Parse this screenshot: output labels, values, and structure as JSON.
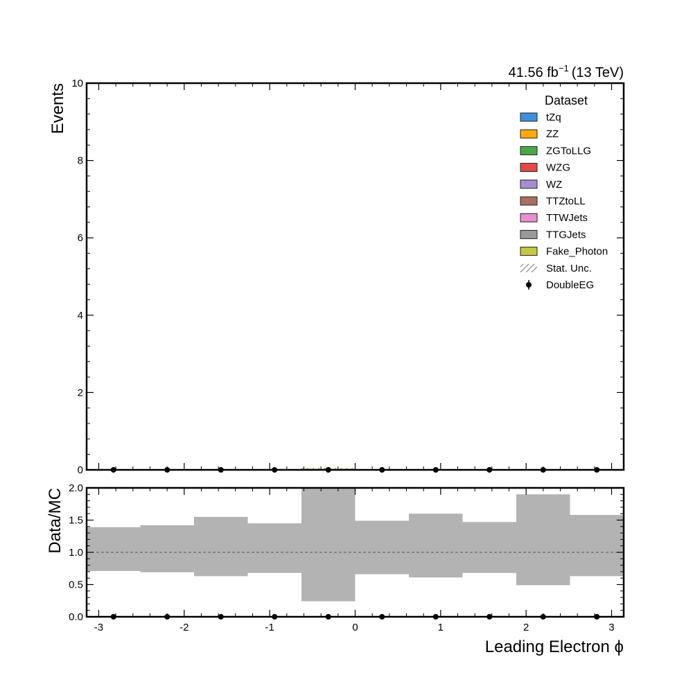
{
  "lumi": {
    "value": "41.56 fb",
    "exponent": "−1",
    "energy": "(13 TeV)"
  },
  "colors": {
    "tZq": "#3f90da",
    "ZZ": "#ffa90e",
    "ZGToLLG": "#4aa64a",
    "WZG": "#e24a4a",
    "WZ": "#a58dd5",
    "TTZtoLL": "#a87060",
    "TTWJets": "#e88fd0",
    "TTGJets": "#999999",
    "Fake_Photon": "#c6c646",
    "band": "#b3b3b3"
  },
  "chart_data": [
    {
      "type": "bar",
      "panel": "main",
      "xlabel": "Leading Electron ϕ",
      "ylabel": "Events",
      "xlim": [
        -3.1416,
        3.1416
      ],
      "ylim": [
        0,
        10
      ],
      "y_ticks": [
        "0",
        "2",
        "4",
        "6",
        "8",
        "10"
      ],
      "bin_edges": [
        -3.1416,
        -2.5133,
        -1.885,
        -1.2566,
        -0.6283,
        0.0,
        0.6283,
        1.2566,
        1.885,
        2.5133,
        3.1416
      ],
      "mc_total": [
        0.004,
        0.006,
        0.003,
        0.004,
        0.03,
        0.004,
        0.005,
        0.004,
        0.004,
        0.004
      ],
      "stat_unc": [
        0.002,
        0.002,
        0.002,
        0.002,
        0.02,
        0.002,
        0.002,
        0.002,
        0.002,
        0.002
      ],
      "data": {
        "name": "DoubleEG",
        "x": [
          -2.8274,
          -2.1991,
          -1.5708,
          -0.9425,
          -0.3142,
          0.3142,
          0.9425,
          1.5708,
          2.1991,
          2.8274
        ],
        "y": [
          0,
          0,
          0,
          0,
          0,
          0,
          0,
          0,
          0,
          0
        ]
      },
      "legend": {
        "title": "Dataset",
        "placement": "top-right",
        "entries": [
          {
            "label": "tZq",
            "kind": "patch",
            "color": "#3f90da"
          },
          {
            "label": "ZZ",
            "kind": "patch",
            "color": "#ffa90e"
          },
          {
            "label": "ZGToLLG",
            "kind": "patch",
            "color": "#4aa64a"
          },
          {
            "label": "WZG",
            "kind": "patch",
            "color": "#e24a4a"
          },
          {
            "label": "WZ",
            "kind": "patch",
            "color": "#a58dd5"
          },
          {
            "label": "TTZtoLL",
            "kind": "patch",
            "color": "#a87060"
          },
          {
            "label": "TTWJets",
            "kind": "patch",
            "color": "#e88fd0"
          },
          {
            "label": "TTGJets",
            "kind": "patch",
            "color": "#999999"
          },
          {
            "label": "Fake_Photon",
            "kind": "patch",
            "color": "#c6c646"
          },
          {
            "label": "Stat. Unc.",
            "kind": "hatch",
            "color": "#888888"
          },
          {
            "label": "DoubleEG",
            "kind": "marker",
            "color": "#000000"
          }
        ]
      }
    },
    {
      "type": "bar",
      "panel": "ratio",
      "xlabel": "Leading Electron ϕ",
      "ylabel": "Data/MC",
      "xlim": [
        -3.1416,
        3.1416
      ],
      "ylim": [
        0,
        2
      ],
      "y_ticks": [
        "0.0",
        "0.5",
        "1.0",
        "1.5",
        "2.0"
      ],
      "x_ticks": [
        "-3",
        "-2",
        "-1",
        "0",
        "1",
        "2",
        "3"
      ],
      "reference_line": 1.0,
      "bin_edges": [
        -3.1416,
        -2.5133,
        -1.885,
        -1.2566,
        -0.6283,
        0.0,
        0.6283,
        1.2566,
        1.885,
        2.5133,
        3.1416
      ],
      "band_low": [
        0.71,
        0.69,
        0.63,
        0.68,
        0.24,
        0.66,
        0.61,
        0.68,
        0.49,
        0.63
      ],
      "band_high": [
        1.39,
        1.42,
        1.55,
        1.45,
        2.0,
        1.49,
        1.6,
        1.47,
        1.9,
        1.58
      ],
      "ratio": {
        "x": [
          -2.8274,
          -2.1991,
          -1.5708,
          -0.9425,
          -0.3142,
          0.3142,
          0.9425,
          1.5708,
          2.1991,
          2.8274
        ],
        "y": [
          0,
          0,
          0,
          0,
          0,
          0,
          0,
          0,
          0,
          0
        ]
      }
    }
  ]
}
